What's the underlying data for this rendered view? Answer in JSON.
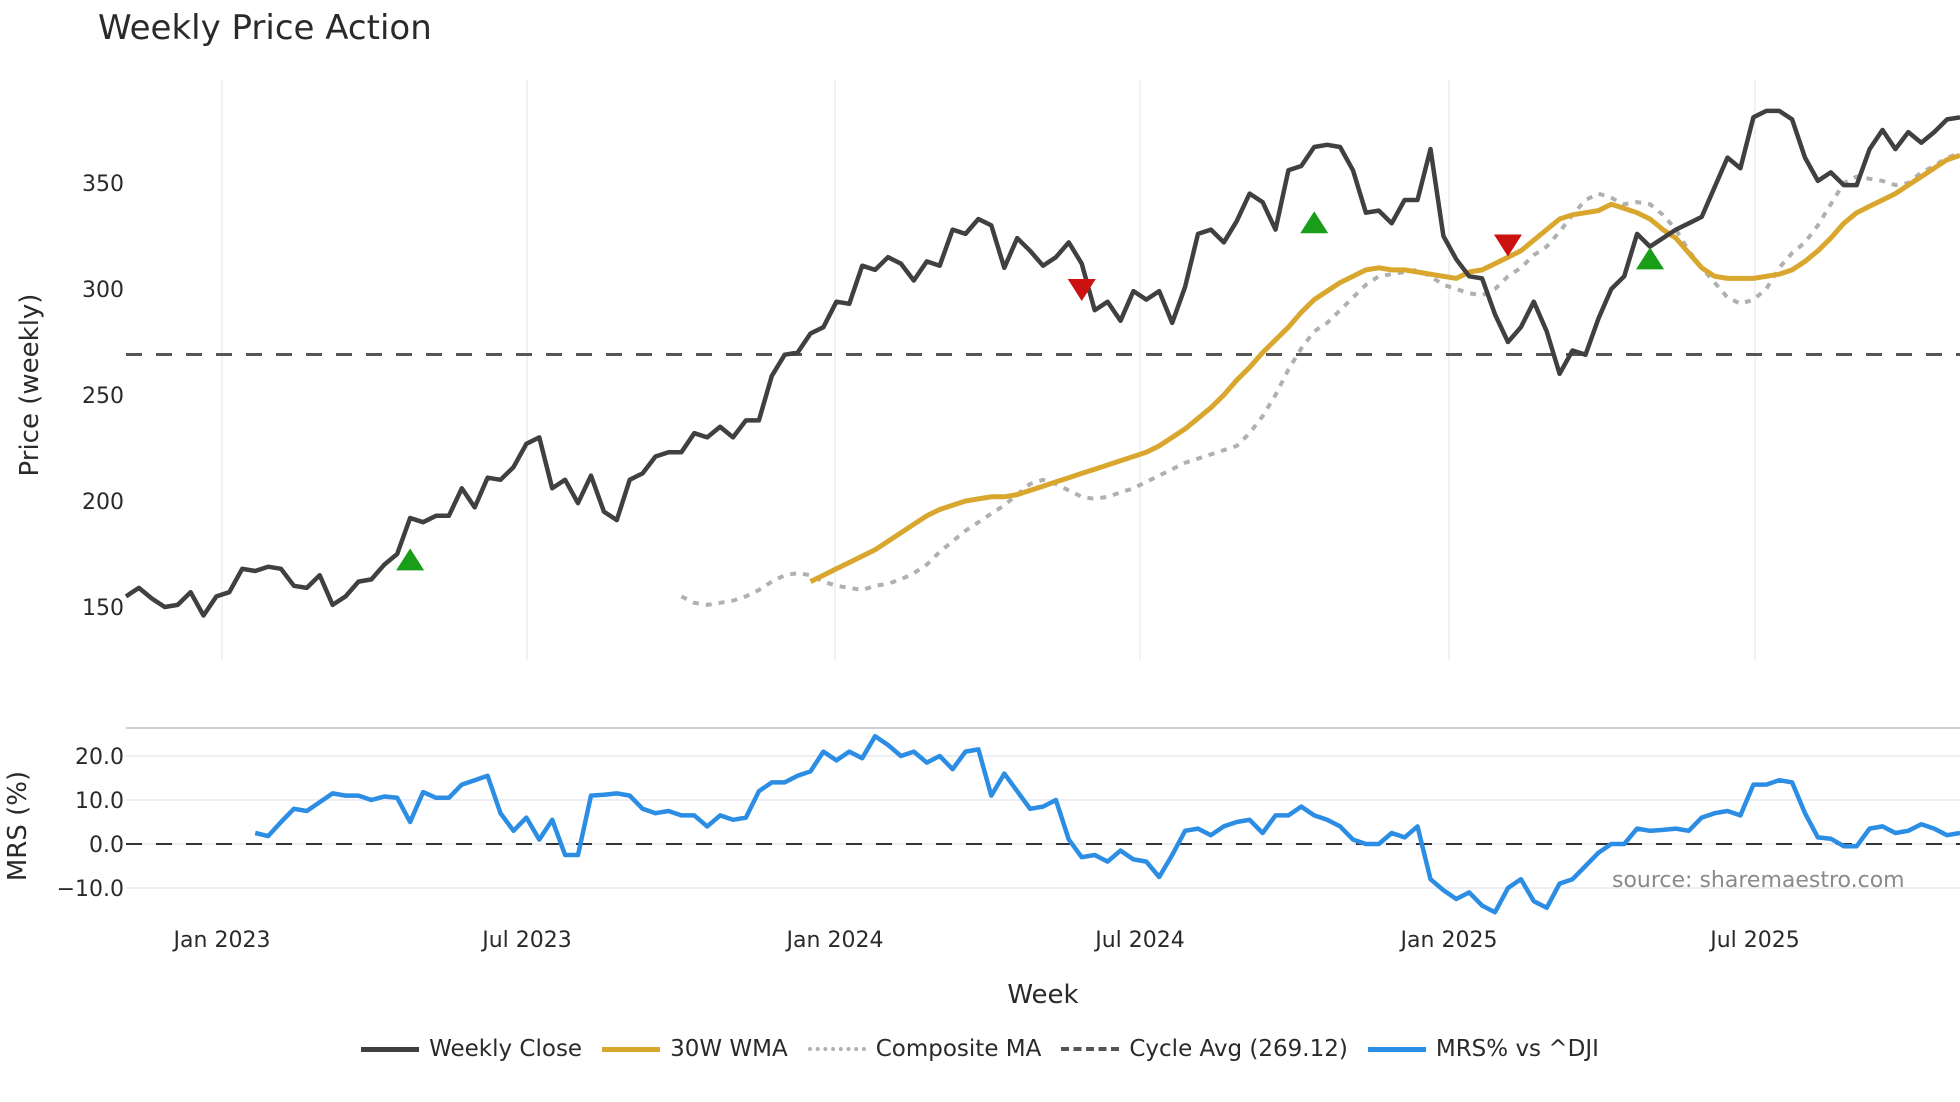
{
  "title": "Weekly Price Action",
  "watermark": "source: sharemaestro.com",
  "colors": {
    "weekly_close": "#404040",
    "wma": "#d9a62e",
    "composite_ma": "#b0b0b0",
    "cycle_avg": "#555555",
    "mrs": "#2b8de3",
    "buy_marker": "#1a9e1a",
    "sell_marker": "#cc1111"
  },
  "legend": [
    {
      "label": "Weekly Close",
      "style": "solid",
      "key": "weekly_close"
    },
    {
      "label": "30W WMA",
      "style": "solid",
      "key": "wma"
    },
    {
      "label": "Composite MA",
      "style": "dotted",
      "key": "composite_ma"
    },
    {
      "label": "Cycle Avg (269.12)",
      "style": "dashed",
      "key": "cycle_avg"
    },
    {
      "label": "MRS% vs ^DJI",
      "style": "solid",
      "key": "mrs"
    }
  ],
  "chart_data": [
    {
      "type": "line",
      "title": "Weekly Price Action",
      "xlabel": "Week",
      "ylabel": "Price (weekly)",
      "x_ticks": [
        "Jan 2023",
        "Jul 2023",
        "Jan 2024",
        "Jul 2024",
        "Jan 2025",
        "Jul 2025"
      ],
      "y_ticks": [
        150,
        200,
        250,
        300,
        350
      ],
      "ylim": [
        135,
        395
      ],
      "xlim": [
        "2022-11",
        "2025-10"
      ],
      "grid": "vertical",
      "cycle_avg": 269.12,
      "series": [
        {
          "name": "Weekly Close",
          "values": [
            155,
            159,
            154,
            150,
            151,
            157,
            146,
            155,
            157,
            168,
            167,
            169,
            168,
            160,
            159,
            165,
            151,
            155,
            162,
            163,
            170,
            175,
            192,
            190,
            193,
            193,
            206,
            197,
            211,
            210,
            216,
            227,
            230,
            206,
            210,
            199,
            212,
            195,
            191,
            210,
            213,
            221,
            223,
            223,
            232,
            230,
            235,
            230,
            238,
            238,
            259,
            269,
            270,
            279,
            282,
            294,
            293,
            311,
            309,
            315,
            312,
            304,
            313,
            311,
            328,
            326,
            333,
            330,
            310,
            324,
            318,
            311,
            315,
            322,
            312,
            290,
            294,
            285,
            299,
            295,
            299,
            284,
            301,
            326,
            328,
            322,
            332,
            345,
            341,
            328,
            356,
            358,
            367,
            368,
            367,
            356,
            336,
            337,
            331,
            342,
            342,
            366,
            325,
            314,
            306,
            305,
            288,
            275,
            282,
            294,
            280,
            260,
            271,
            269,
            286,
            300,
            306,
            326,
            320,
            324,
            328,
            331,
            334,
            348,
            362,
            357,
            381,
            384,
            384,
            380,
            362,
            351,
            355,
            349,
            349,
            366,
            375,
            366,
            374,
            369,
            374,
            380,
            381
          ]
        },
        {
          "name": "30W WMA",
          "values": [
            null,
            null,
            null,
            null,
            null,
            null,
            null,
            null,
            null,
            null,
            null,
            null,
            null,
            null,
            null,
            null,
            null,
            null,
            null,
            null,
            null,
            162,
            165,
            168,
            171,
            174,
            177,
            181,
            185,
            189,
            193,
            196,
            198,
            200,
            201,
            202,
            202,
            203,
            205,
            207,
            209,
            211,
            213,
            215,
            217,
            219,
            221,
            223,
            226,
            230,
            234,
            239,
            244,
            250,
            257,
            263,
            270,
            276,
            282,
            289,
            295,
            299,
            303,
            306,
            309,
            310,
            309,
            309,
            308,
            307,
            306,
            305,
            308,
            309,
            312,
            315,
            318,
            323,
            328,
            333,
            335,
            336,
            337,
            340,
            338,
            336,
            333,
            328,
            324,
            317,
            310,
            306,
            305,
            305,
            305,
            306,
            307,
            309,
            313,
            318,
            324,
            331,
            336,
            339,
            342,
            345,
            349,
            353,
            357,
            361,
            363
          ]
        },
        {
          "name": "Composite MA",
          "values": [
            null,
            null,
            155,
            152,
            151,
            152,
            153,
            155,
            158,
            162,
            165,
            166,
            165,
            162,
            160,
            159,
            158,
            160,
            161,
            163,
            166,
            170,
            176,
            181,
            186,
            190,
            194,
            198,
            203,
            208,
            210,
            208,
            205,
            202,
            201,
            202,
            204,
            206,
            209,
            212,
            215,
            218,
            220,
            222,
            224,
            226,
            232,
            240,
            250,
            262,
            272,
            280,
            284,
            290,
            296,
            302,
            306,
            307,
            308,
            309,
            306,
            302,
            300,
            298,
            297,
            300,
            306,
            310,
            316,
            320,
            327,
            335,
            342,
            345,
            343,
            340,
            341,
            340,
            335,
            328,
            318,
            310,
            303,
            296,
            293,
            295,
            300,
            310,
            317,
            322,
            330,
            340,
            350,
            353,
            352,
            351,
            349,
            350,
            355,
            358,
            362,
            364
          ]
        },
        {
          "name": "MRS% vs ^DJI",
          "axis": "MRS (%)",
          "y_ticks": [
            -10.0,
            0.0,
            10.0,
            20.0
          ],
          "values": [
            2.5,
            1.8,
            5.0,
            8.0,
            7.5,
            9.5,
            11.5,
            11.0,
            11.0,
            10.0,
            10.8,
            10.5,
            5.0,
            11.8,
            10.5,
            10.5,
            13.5,
            14.5,
            15.5,
            7.0,
            3.0,
            6.0,
            1.0,
            5.5,
            -2.5,
            -2.5,
            11.0,
            11.2,
            11.5,
            11.0,
            8.0,
            7.0,
            7.5,
            6.5,
            6.5,
            4.0,
            6.5,
            5.5,
            6.0,
            12.0,
            14.0,
            14.0,
            15.5,
            16.5,
            21.0,
            19.0,
            21.0,
            19.5,
            24.5,
            22.5,
            20.0,
            21.0,
            18.5,
            20.0,
            17.0,
            21.0,
            21.5,
            11.0,
            16.0,
            12.0,
            8.0,
            8.5,
            10.0,
            1.0,
            -3.0,
            -2.5,
            -4.0,
            -1.5,
            -3.5,
            -4.0,
            -7.5,
            -2.5,
            3.0,
            3.5,
            2.0,
            4.0,
            5.0,
            5.5,
            2.5,
            6.5,
            6.5,
            8.5,
            6.5,
            5.5,
            4.0,
            1.0,
            0.0,
            0.0,
            2.5,
            1.5,
            4.0,
            -8.0,
            -10.5,
            -12.5,
            -11.0,
            -14.0,
            -15.5,
            -10.0,
            -8.0,
            -13.0,
            -14.5,
            -9.0,
            -8.0,
            -5.0,
            -2.0,
            0.0,
            0.0,
            3.5,
            3.0,
            3.2,
            3.5,
            3.0,
            6.0,
            7.0,
            7.5,
            6.5,
            13.5,
            13.5,
            14.5,
            14.0,
            7.0,
            1.5,
            1.2,
            -0.5,
            -0.5,
            3.5,
            4.0,
            2.5,
            3.0,
            4.5,
            3.5,
            2.0,
            2.5
          ]
        }
      ],
      "markers": [
        {
          "type": "buy",
          "x_week": 22,
          "price": 172
        },
        {
          "type": "sell",
          "x_week": 74,
          "price": 300
        },
        {
          "type": "buy",
          "x_week": 92,
          "price": 331
        },
        {
          "type": "sell",
          "x_week": 107,
          "price": 321
        },
        {
          "type": "buy",
          "x_week": 118,
          "price": 314
        }
      ]
    }
  ]
}
